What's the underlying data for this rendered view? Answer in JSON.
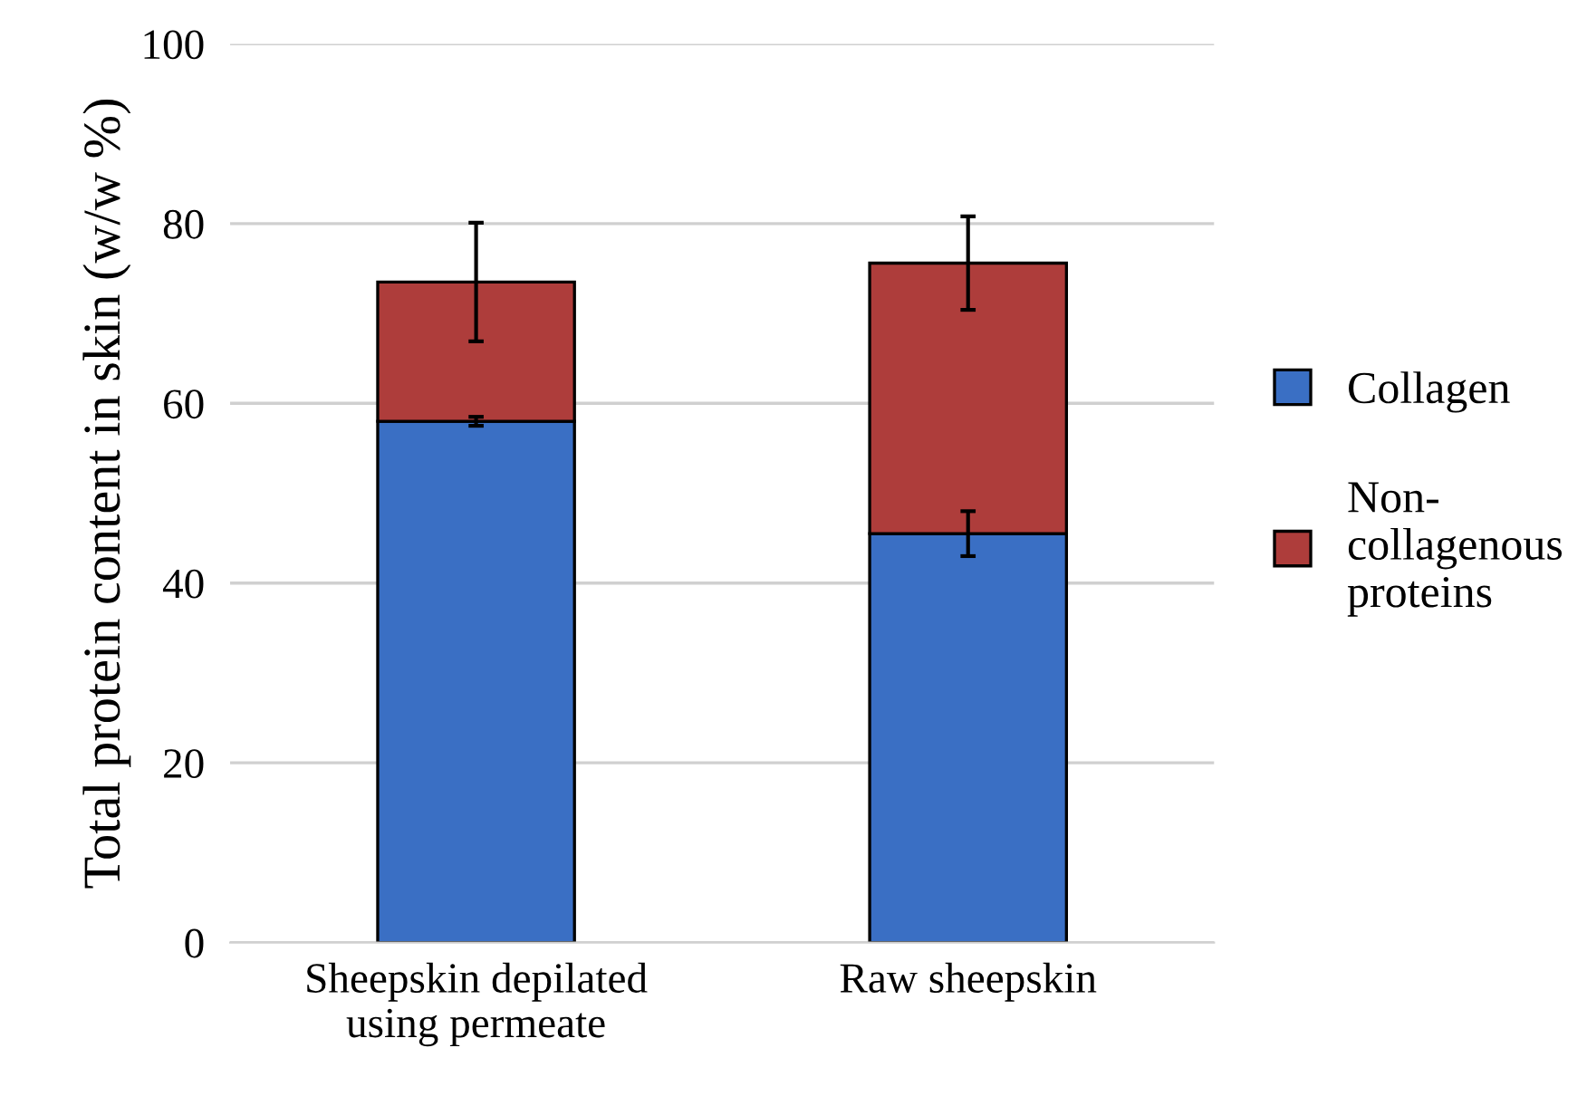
{
  "chart_data": {
    "type": "bar",
    "stacked": true,
    "ylabel": "Total protein content in skin (w/w %)",
    "categories": [
      "Sheepskin depilated\nusing permeate",
      "Raw sheepskin"
    ],
    "series": [
      {
        "name": "Collagen",
        "color": "#3a6fc4",
        "values": [
          58.0,
          45.5
        ],
        "errors": [
          0.5,
          2.5
        ]
      },
      {
        "name": "Non-\ncollagenous\nproteins",
        "color": "#ae3d3b",
        "values": [
          15.5,
          30.1
        ],
        "errors": [
          6.6,
          5.2
        ]
      }
    ],
    "ylim": [
      0,
      100
    ],
    "yticks": [
      0,
      20,
      40,
      60,
      80,
      100
    ],
    "grid": "y",
    "legend": "right"
  }
}
